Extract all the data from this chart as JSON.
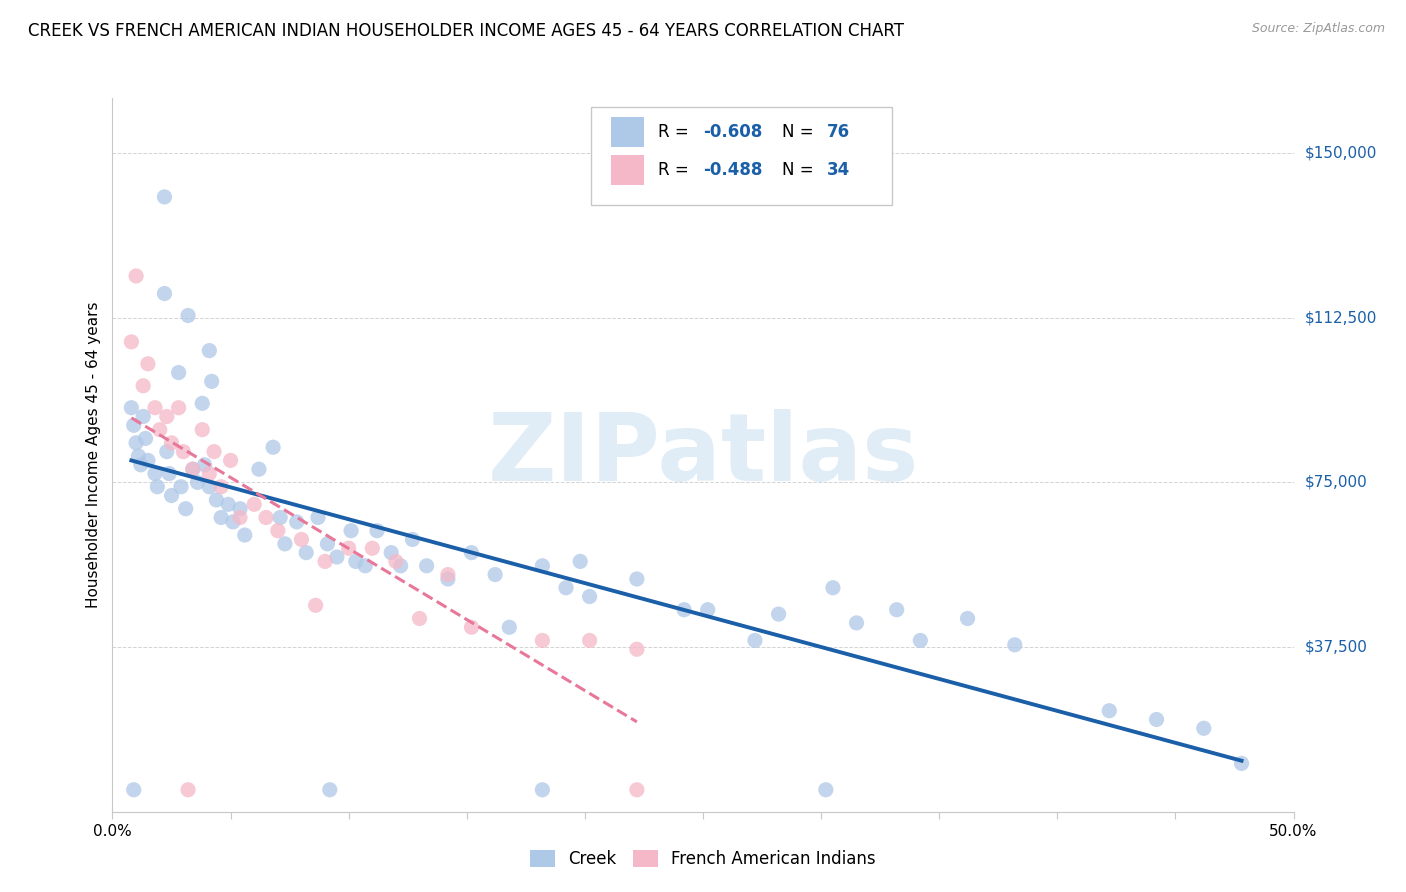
{
  "title": "CREEK VS FRENCH AMERICAN INDIAN HOUSEHOLDER INCOME AGES 45 - 64 YEARS CORRELATION CHART",
  "source": "Source: ZipAtlas.com",
  "ylabel": "Householder Income Ages 45 - 64 years",
  "xlim": [
    0.0,
    0.5
  ],
  "ylim": [
    0,
    162500
  ],
  "xticks": [
    0.0,
    0.05,
    0.1,
    0.15,
    0.2,
    0.25,
    0.3,
    0.35,
    0.4,
    0.45,
    0.5
  ],
  "yticks": [
    0,
    37500,
    75000,
    112500,
    150000
  ],
  "yticklabels": [
    "",
    "$37,500",
    "$75,000",
    "$112,500",
    "$150,000"
  ],
  "creek_color": "#aec8e8",
  "french_color": "#f4b8c8",
  "creek_line_color": "#1a5fa8",
  "french_line_color": "#e8789a",
  "legend_creek_R": "-0.608",
  "legend_creek_N": "76",
  "legend_french_R": "-0.488",
  "legend_french_N": "34",
  "legend_label_creek": "Creek",
  "legend_label_french": "French American Indians",
  "watermark_text": "ZIPatlas",
  "title_fontsize": 12,
  "axis_label_fontsize": 11,
  "tick_fontsize": 11,
  "creek_scatter_x": [
    0.022,
    0.022,
    0.032,
    0.028,
    0.042,
    0.038,
    0.041,
    0.008,
    0.009,
    0.01,
    0.011,
    0.012,
    0.013,
    0.014,
    0.015,
    0.018,
    0.019,
    0.023,
    0.024,
    0.025,
    0.029,
    0.031,
    0.034,
    0.036,
    0.039,
    0.041,
    0.044,
    0.046,
    0.049,
    0.051,
    0.054,
    0.056,
    0.062,
    0.068,
    0.071,
    0.073,
    0.078,
    0.082,
    0.087,
    0.091,
    0.095,
    0.101,
    0.103,
    0.107,
    0.112,
    0.118,
    0.122,
    0.127,
    0.133,
    0.142,
    0.152,
    0.162,
    0.168,
    0.182,
    0.192,
    0.198,
    0.202,
    0.222,
    0.242,
    0.252,
    0.272,
    0.282,
    0.305,
    0.315,
    0.332,
    0.342,
    0.362,
    0.382,
    0.422,
    0.442,
    0.462,
    0.478,
    0.009,
    0.092,
    0.182,
    0.302
  ],
  "creek_scatter_y": [
    140000,
    118000,
    113000,
    100000,
    98000,
    93000,
    105000,
    92000,
    88000,
    84000,
    81000,
    79000,
    90000,
    85000,
    80000,
    77000,
    74000,
    82000,
    77000,
    72000,
    74000,
    69000,
    78000,
    75000,
    79000,
    74000,
    71000,
    67000,
    70000,
    66000,
    69000,
    63000,
    78000,
    83000,
    67000,
    61000,
    66000,
    59000,
    67000,
    61000,
    58000,
    64000,
    57000,
    56000,
    64000,
    59000,
    56000,
    62000,
    56000,
    53000,
    59000,
    54000,
    42000,
    56000,
    51000,
    57000,
    49000,
    53000,
    46000,
    46000,
    39000,
    45000,
    51000,
    43000,
    46000,
    39000,
    44000,
    38000,
    23000,
    21000,
    19000,
    11000,
    5000,
    5000,
    5000,
    5000
  ],
  "french_scatter_x": [
    0.008,
    0.01,
    0.013,
    0.015,
    0.018,
    0.02,
    0.023,
    0.025,
    0.028,
    0.03,
    0.034,
    0.038,
    0.041,
    0.043,
    0.046,
    0.05,
    0.054,
    0.06,
    0.065,
    0.07,
    0.08,
    0.086,
    0.09,
    0.1,
    0.11,
    0.12,
    0.13,
    0.142,
    0.152,
    0.182,
    0.202,
    0.222,
    0.032,
    0.222
  ],
  "french_scatter_y": [
    107000,
    122000,
    97000,
    102000,
    92000,
    87000,
    90000,
    84000,
    92000,
    82000,
    78000,
    87000,
    77000,
    82000,
    74000,
    80000,
    67000,
    70000,
    67000,
    64000,
    62000,
    47000,
    57000,
    60000,
    60000,
    57000,
    44000,
    54000,
    42000,
    39000,
    39000,
    37000,
    5000,
    5000
  ]
}
